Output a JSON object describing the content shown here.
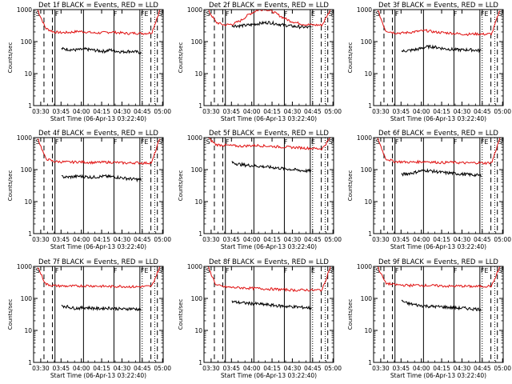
{
  "colors": {
    "events": "#000000",
    "lld": "#e01010",
    "background": "#ffffff",
    "axis": "#000000"
  },
  "chart_data": [
    {
      "type": "line",
      "title": "Det 1f BLACK = Events, RED = LLD",
      "xlabel": "Start Time (06-Apr-13 03:22:40)",
      "ylabel": "Counts/sec",
      "yscale": "log",
      "ylim": [
        1,
        1000
      ],
      "yticks": [
        "1",
        "10",
        "100",
        "1000"
      ],
      "xticks": [
        "03:30",
        "03:45",
        "04:00",
        "04:15",
        "04:30",
        "04:45",
        "05:00"
      ],
      "markers": [
        "S",
        "F",
        "F",
        "FE",
        "S"
      ],
      "series": [
        {
          "name": "LLD",
          "values": [
            1000,
            260,
            200,
            190,
            195,
            210,
            200,
            185,
            190,
            200,
            190,
            180,
            185,
            180,
            190,
            1000
          ]
        },
        {
          "name": "Events",
          "values": [
            null,
            60,
            58,
            55,
            56,
            58,
            55,
            52,
            50,
            55,
            50,
            48,
            50,
            48,
            45,
            null
          ]
        }
      ]
    },
    {
      "type": "line",
      "title": "Det 2f BLACK = Events, RED = LLD",
      "xlabel": "Start Time (06-Apr-13 03:22:40)",
      "ylabel": "Counts/sec",
      "yscale": "log",
      "ylim": [
        1,
        1000
      ],
      "yticks": [
        "1",
        "10",
        "100",
        "1000"
      ],
      "xticks": [
        "03:30",
        "03:45",
        "04:00",
        "04:15",
        "04:30",
        "04:45",
        "05:00"
      ],
      "markers": [
        "S",
        "F",
        "F",
        "E",
        "S"
      ],
      "series": [
        {
          "name": "LLD",
          "values": [
            1000,
            400,
            330,
            350,
            450,
            700,
            950,
            1050,
            850,
            600,
            450,
            380,
            340,
            330,
            330,
            1000
          ]
        },
        {
          "name": "Events",
          "values": [
            null,
            320,
            310,
            320,
            330,
            360,
            380,
            400,
            370,
            340,
            320,
            300,
            290,
            280,
            280,
            null
          ]
        }
      ]
    },
    {
      "type": "line",
      "title": "Det 3f BLACK = Events, RED = LLD",
      "xlabel": "Start Time (06-Apr-13 03:22:40)",
      "ylabel": "Counts/sec",
      "yscale": "log",
      "ylim": [
        1,
        1000
      ],
      "yticks": [
        "1",
        "10",
        "100",
        "1000"
      ],
      "xticks": [
        "03:30",
        "03:45",
        "04:00",
        "04:15",
        "04:30",
        "04:45",
        "05:00"
      ],
      "markers": [
        "S",
        "F",
        "F",
        "FE",
        "S"
      ],
      "series": [
        {
          "name": "LLD",
          "values": [
            1000,
            220,
            190,
            185,
            195,
            210,
            220,
            200,
            190,
            185,
            175,
            170,
            175,
            170,
            175,
            1000
          ]
        },
        {
          "name": "Events",
          "values": [
            null,
            50,
            52,
            55,
            60,
            68,
            70,
            65,
            60,
            58,
            56,
            55,
            56,
            54,
            52,
            null
          ]
        }
      ]
    },
    {
      "type": "line",
      "title": "Det 4f BLACK = Events, RED = LLD",
      "xlabel": "Start Time (06-Apr-13 03:22:40)",
      "ylabel": "Counts/sec",
      "yscale": "log",
      "ylim": [
        1,
        1000
      ],
      "yticks": [
        "1",
        "10",
        "100",
        "1000"
      ],
      "xticks": [
        "03:30",
        "03:45",
        "04:00",
        "04:15",
        "04:30",
        "04:45",
        "05:00"
      ],
      "markers": [
        "S",
        "F",
        "F",
        "FE",
        "S"
      ],
      "series": [
        {
          "name": "LLD",
          "values": [
            1000,
            220,
            180,
            175,
            170,
            175,
            170,
            165,
            170,
            170,
            165,
            160,
            165,
            160,
            165,
            1000
          ]
        },
        {
          "name": "Events",
          "values": [
            null,
            60,
            58,
            60,
            62,
            60,
            58,
            60,
            62,
            60,
            58,
            55,
            52,
            50,
            48,
            null
          ]
        }
      ]
    },
    {
      "type": "line",
      "title": "Det 5f BLACK = Events, RED = LLD",
      "xlabel": "Start Time (06-Apr-13 03:22:40)",
      "ylabel": "Counts/sec",
      "yscale": "log",
      "ylim": [
        1,
        1000
      ],
      "yticks": [
        "1",
        "10",
        "100",
        "1000"
      ],
      "xticks": [
        "03:30",
        "03:45",
        "04:00",
        "04:15",
        "04:30",
        "04:45",
        "05:00"
      ],
      "markers": [
        "S",
        "F",
        "F",
        "E",
        "S"
      ],
      "series": [
        {
          "name": "LLD",
          "values": [
            1000,
            600,
            580,
            560,
            540,
            560,
            570,
            550,
            530,
            510,
            500,
            490,
            470,
            460,
            450,
            1000
          ]
        },
        {
          "name": "Events",
          "values": [
            null,
            170,
            150,
            140,
            135,
            130,
            125,
            120,
            115,
            110,
            105,
            100,
            95,
            92,
            90,
            null
          ]
        }
      ]
    },
    {
      "type": "line",
      "title": "Det 6f BLACK = Events, RED = LLD",
      "xlabel": "Start Time (06-Apr-13 03:22:40)",
      "ylabel": "Counts/sec",
      "yscale": "log",
      "ylim": [
        1,
        1000
      ],
      "yticks": [
        "1",
        "10",
        "100",
        "1000"
      ],
      "xticks": [
        "03:30",
        "03:45",
        "04:00",
        "04:15",
        "04:30",
        "04:45",
        "05:00"
      ],
      "markers": [
        "S",
        "F",
        "F",
        "FE",
        "S"
      ],
      "series": [
        {
          "name": "LLD",
          "values": [
            1000,
            220,
            180,
            175,
            170,
            175,
            180,
            170,
            165,
            170,
            165,
            160,
            165,
            160,
            165,
            1000
          ]
        },
        {
          "name": "Events",
          "values": [
            null,
            70,
            75,
            80,
            90,
            95,
            90,
            85,
            80,
            78,
            75,
            72,
            70,
            68,
            65,
            null
          ]
        }
      ]
    },
    {
      "type": "line",
      "title": "Det 7f BLACK = Events, RED = LLD",
      "xlabel": "Start Time (06-Apr-13 03:22:40)",
      "ylabel": "Counts/sec",
      "yscale": "log",
      "ylim": [
        1,
        1000
      ],
      "yticks": [
        "1",
        "10",
        "100",
        "1000"
      ],
      "xticks": [
        "03:30",
        "03:45",
        "04:00",
        "04:15",
        "04:30",
        "04:45",
        "05:00"
      ],
      "markers": [
        "S",
        "F",
        "F",
        "FE",
        "S"
      ],
      "series": [
        {
          "name": "LLD",
          "values": [
            1000,
            280,
            250,
            245,
            240,
            245,
            250,
            245,
            240,
            235,
            240,
            235,
            230,
            235,
            240,
            1000
          ]
        },
        {
          "name": "Events",
          "values": [
            null,
            60,
            55,
            50,
            50,
            52,
            50,
            48,
            50,
            50,
            48,
            46,
            48,
            47,
            45,
            null
          ]
        }
      ]
    },
    {
      "type": "line",
      "title": "Det 8f BLACK = Events, RED = LLD",
      "xlabel": "Start Time (06-Apr-13 03:22:40)",
      "ylabel": "Counts/sec",
      "yscale": "log",
      "ylim": [
        1,
        1000
      ],
      "yticks": [
        "1",
        "10",
        "100",
        "1000"
      ],
      "xticks": [
        "03:30",
        "03:45",
        "04:00",
        "04:15",
        "04:30",
        "04:45",
        "05:00"
      ],
      "markers": [
        "S",
        "F",
        "F",
        "E",
        "S"
      ],
      "series": [
        {
          "name": "LLD",
          "values": [
            1000,
            260,
            230,
            220,
            215,
            210,
            205,
            200,
            195,
            190,
            185,
            180,
            185,
            180,
            185,
            1000
          ]
        },
        {
          "name": "Events",
          "values": [
            null,
            80,
            75,
            72,
            70,
            68,
            65,
            63,
            60,
            58,
            56,
            55,
            53,
            52,
            50,
            null
          ]
        }
      ]
    },
    {
      "type": "line",
      "title": "Det 9f BLACK = Events, RED = LLD",
      "xlabel": "Start Time (06-Apr-13 03:22:40)",
      "ylabel": "Counts/sec",
      "yscale": "log",
      "ylim": [
        1,
        1000
      ],
      "yticks": [
        "1",
        "10",
        "100",
        "1000"
      ],
      "xticks": [
        "03:30",
        "03:45",
        "04:00",
        "04:15",
        "04:30",
        "04:45",
        "05:00"
      ],
      "markers": [
        "S",
        "F",
        "F",
        "FE",
        "S"
      ],
      "series": [
        {
          "name": "LLD",
          "values": [
            1000,
            300,
            270,
            260,
            255,
            260,
            255,
            250,
            245,
            240,
            245,
            240,
            235,
            240,
            245,
            1000
          ]
        },
        {
          "name": "Events",
          "values": [
            null,
            85,
            70,
            65,
            60,
            58,
            56,
            55,
            54,
            52,
            50,
            50,
            48,
            47,
            45,
            null
          ]
        }
      ]
    }
  ]
}
